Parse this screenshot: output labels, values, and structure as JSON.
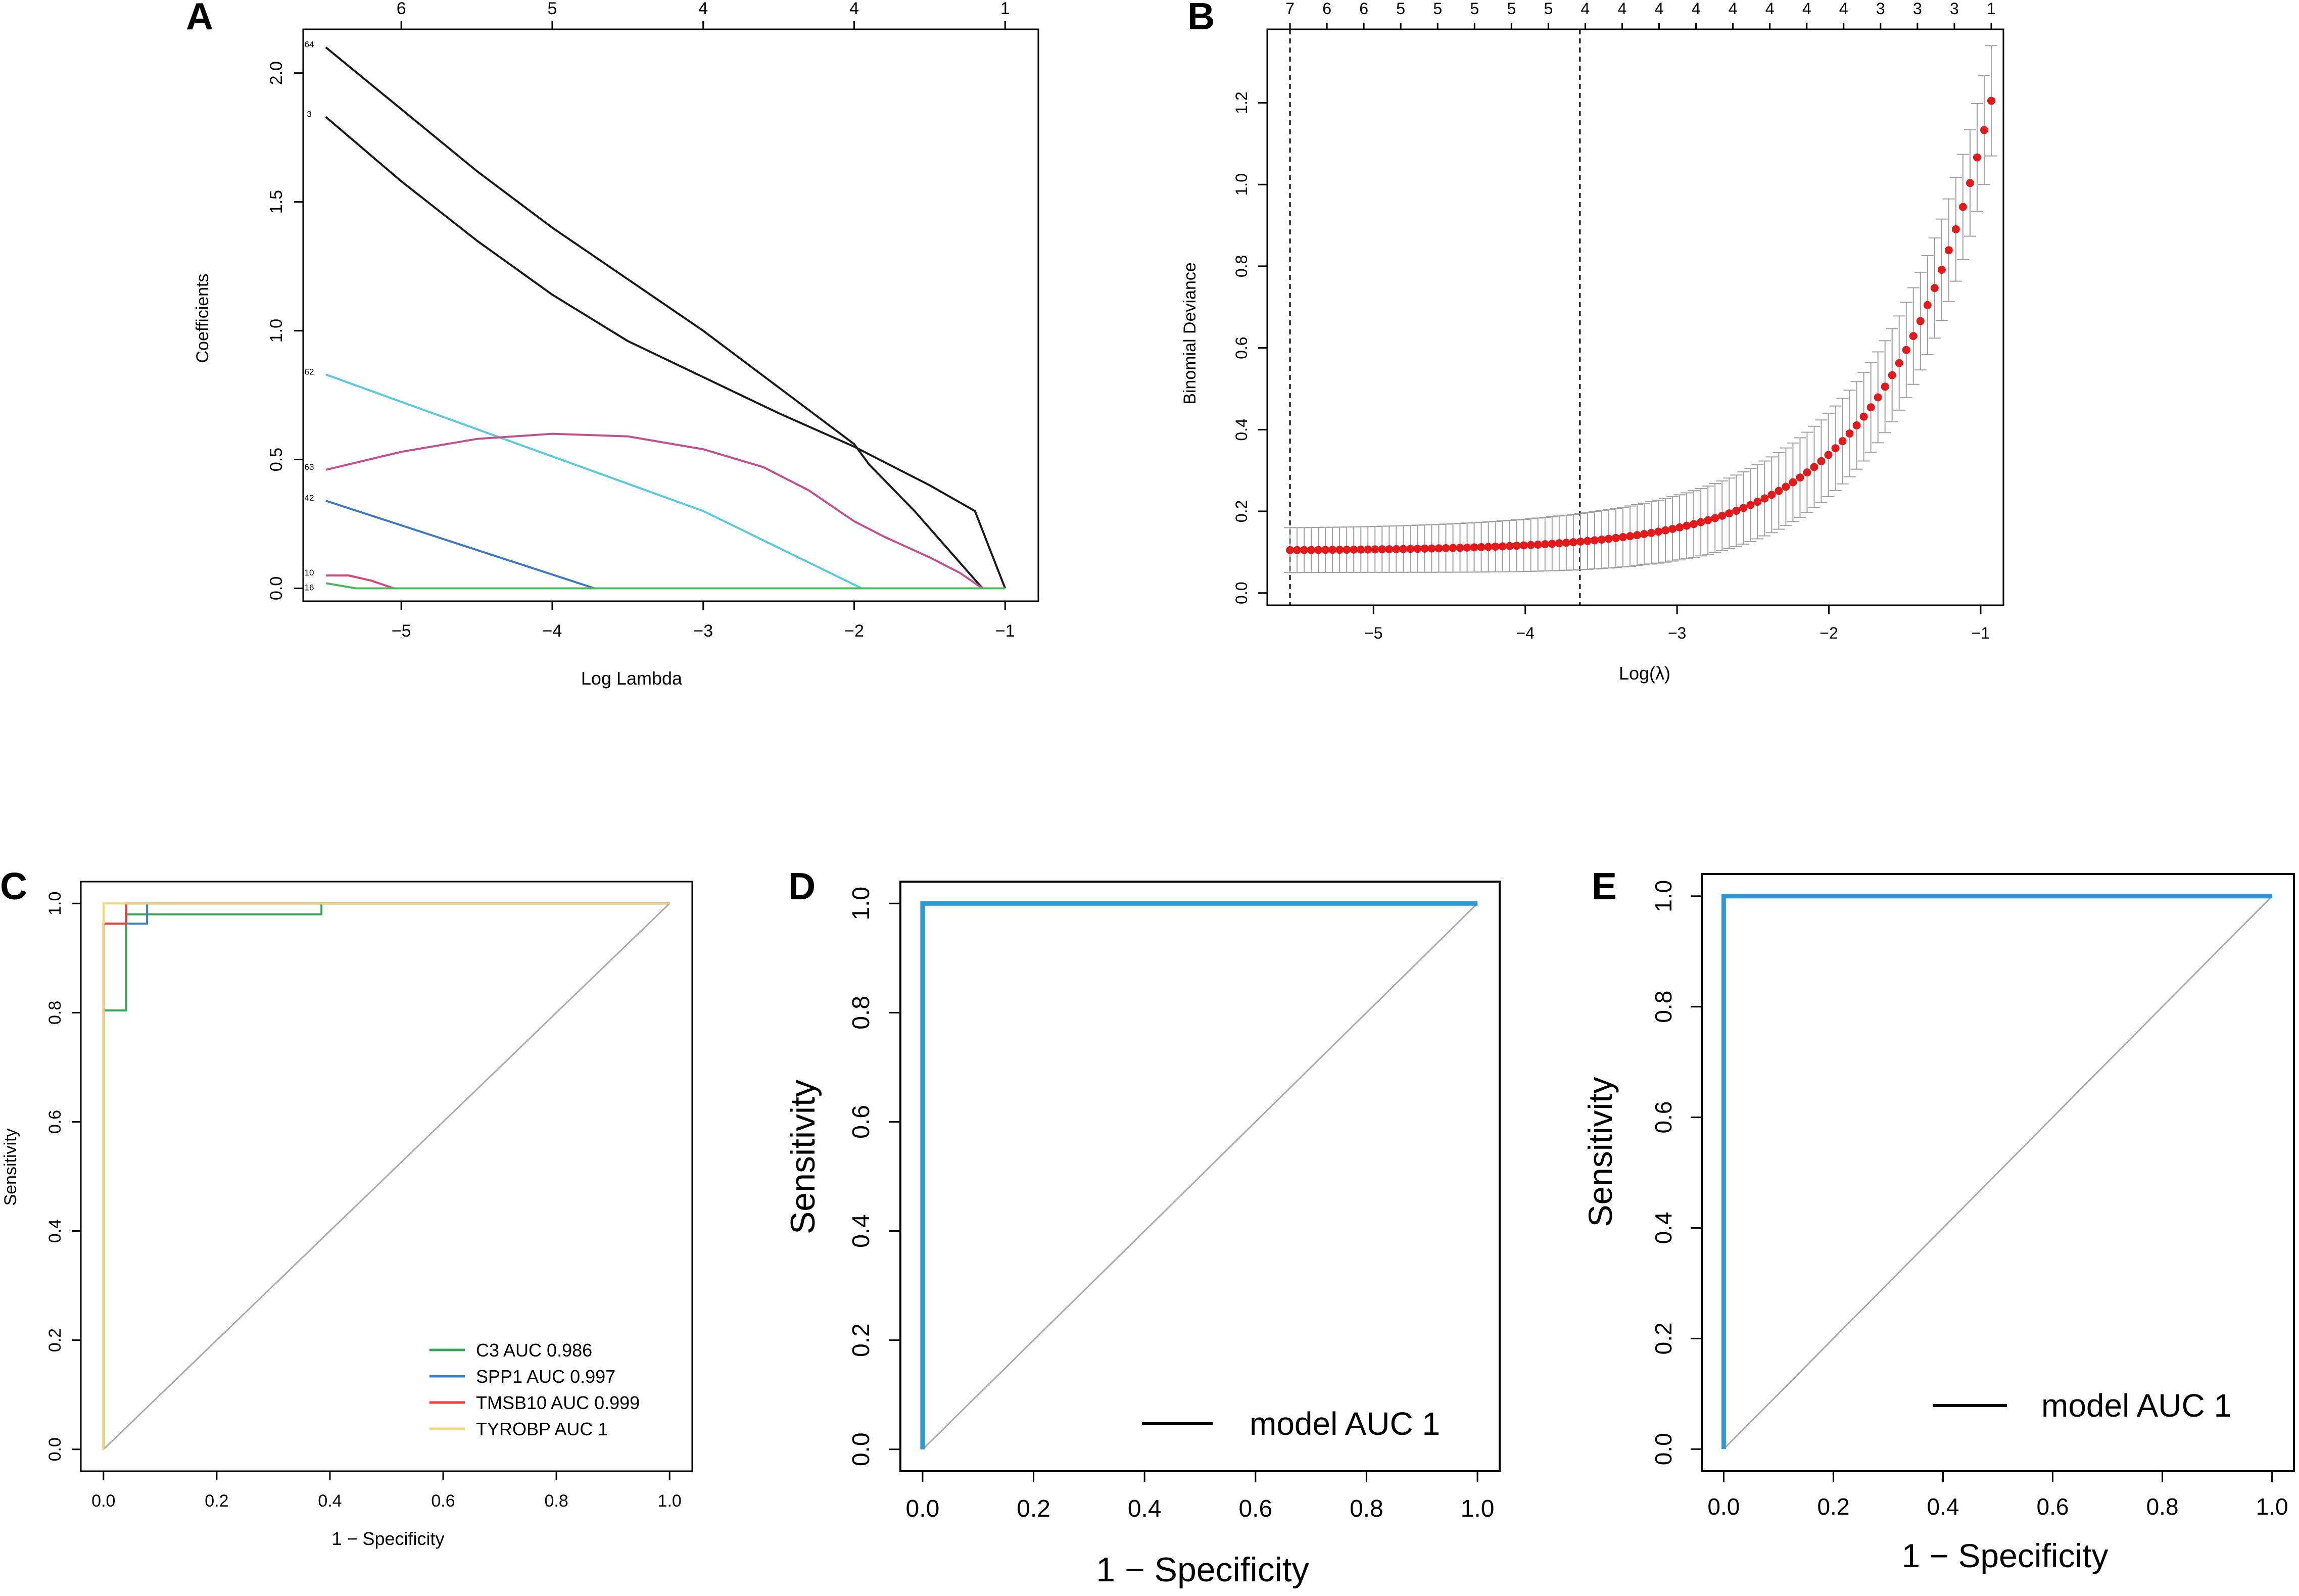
{
  "chart_data": [
    {
      "panel": "A",
      "type": "line",
      "xlabel": "Log Lambda",
      "ylabel": "Coefficients",
      "xlim": [
        -5.65,
        -0.78
      ],
      "ylim": [
        -0.05,
        2.17
      ],
      "x_ticks": [
        -5,
        -4,
        -3,
        -2,
        -1
      ],
      "x_tick_labels": [
        "−5",
        "−4",
        "−3",
        "−2",
        "−1"
      ],
      "y_ticks": [
        0.0,
        0.5,
        1.0,
        1.5,
        2.0
      ],
      "y_tick_labels": [
        "0.0",
        "0.5",
        "1.0",
        "1.5",
        "2.0"
      ],
      "top_axis": {
        "positions": [
          -5.0,
          -4.0,
          -3.0,
          -2.0,
          -1.0
        ],
        "labels": [
          "6",
          "5",
          "4",
          "4",
          "1"
        ]
      },
      "series": [
        {
          "name": "64",
          "color": "#1a1a1a",
          "x": [
            -5.5,
            -5.0,
            -4.5,
            -4.0,
            -3.7,
            -3.5,
            -3.0,
            -2.5,
            -2.0,
            -1.9,
            -1.6,
            -1.3,
            -1.15
          ],
          "y": [
            2.1,
            1.86,
            1.62,
            1.4,
            1.28,
            1.2,
            1.0,
            0.78,
            0.56,
            0.48,
            0.3,
            0.1,
            0.0
          ]
        },
        {
          "name": "3",
          "color": "#1a1a1a",
          "x": [
            -5.5,
            -5.0,
            -4.5,
            -4.0,
            -3.5,
            -3.0,
            -2.5,
            -2.0,
            -1.5,
            -1.2,
            -1.0
          ],
          "y": [
            1.83,
            1.58,
            1.35,
            1.14,
            0.96,
            0.82,
            0.68,
            0.55,
            0.4,
            0.3,
            0.0
          ]
        },
        {
          "name": "62",
          "color": "#5bc8dc",
          "x": [
            -5.5,
            -3.0,
            -1.95,
            -1.0
          ],
          "y": [
            0.83,
            0.3,
            0.0,
            0.0
          ]
        },
        {
          "name": "63",
          "color": "#c0508e",
          "x": [
            -5.5,
            -5.0,
            -4.5,
            -4.0,
            -3.5,
            -3.0,
            -2.6,
            -2.3,
            -2.0,
            -1.8,
            -1.5,
            -1.3,
            -1.15
          ],
          "y": [
            0.46,
            0.53,
            0.58,
            0.6,
            0.59,
            0.54,
            0.47,
            0.38,
            0.26,
            0.2,
            0.12,
            0.06,
            0.0
          ]
        },
        {
          "name": "42",
          "color": "#3b78c0",
          "x": [
            -5.5,
            -3.72,
            -1.0
          ],
          "y": [
            0.34,
            0.0,
            0.0
          ]
        },
        {
          "name": "10",
          "color": "#e0407a",
          "x": [
            -5.5,
            -5.35,
            -5.2,
            -5.05,
            -1.0
          ],
          "y": [
            0.05,
            0.05,
            0.03,
            0.0,
            0.0
          ]
        },
        {
          "name": "16",
          "color": "#4cb85c",
          "x": [
            -5.5,
            -5.3,
            -1.0
          ],
          "y": [
            0.02,
            0.0,
            0.0
          ]
        }
      ]
    },
    {
      "panel": "B",
      "type": "scatter",
      "xlabel": "Log(λ)",
      "ylabel": "Binomial Deviance",
      "xlim": [
        -5.7,
        -0.85
      ],
      "ylim": [
        -0.03,
        1.38
      ],
      "x_ticks": [
        -5,
        -4,
        -3,
        -2,
        -1
      ],
      "x_tick_labels": [
        "−5",
        "−4",
        "−3",
        "−2",
        "−1"
      ],
      "y_ticks": [
        0.0,
        0.2,
        0.4,
        0.6,
        0.8,
        1.0,
        1.2
      ],
      "y_tick_labels": [
        "0.0",
        "0.2",
        "0.4",
        "0.6",
        "0.8",
        "1.0",
        "1.2"
      ],
      "top_axis": {
        "labels": [
          "7",
          "6",
          "6",
          "5",
          "5",
          "5",
          "5",
          "5",
          "4",
          "4",
          "4",
          "4",
          "4",
          "4",
          "4",
          "4",
          "3",
          "3",
          "3",
          "1"
        ]
      },
      "vlines": [
        -5.55,
        -3.64
      ],
      "curve": {
        "x_start": -5.55,
        "x_end": -0.93,
        "n_points": 100,
        "y_start": 0.105,
        "y_end": 1.205,
        "growth": 2.22,
        "err_start": 0.055,
        "err_end": 0.135
      },
      "point_color": "#e31a1c",
      "errorbar_color": "#a0a0a0"
    },
    {
      "panel": "C",
      "type": "line",
      "xlabel": "1 − Specificity",
      "ylabel": "Sensitivity",
      "xlim": [
        -0.04,
        1.04
      ],
      "ylim": [
        -0.04,
        1.04
      ],
      "x_ticks": [
        0.0,
        0.2,
        0.4,
        0.6,
        0.8,
        1.0
      ],
      "x_tick_labels": [
        "0.0",
        "0.2",
        "0.4",
        "0.6",
        "0.8",
        "1.0"
      ],
      "y_ticks": [
        0.0,
        0.2,
        0.4,
        0.6,
        0.8,
        1.0
      ],
      "y_tick_labels": [
        "0.0",
        "0.2",
        "0.4",
        "0.6",
        "0.8",
        "1.0"
      ],
      "diagonal": true,
      "legend_position": "bottom-right",
      "series": [
        {
          "name": "C3 AUC 0.986",
          "color": "#3aa55a",
          "x": [
            0.0,
            0.0,
            0.04,
            0.04,
            0.385,
            0.385,
            1.0
          ],
          "y": [
            0.0,
            0.804,
            0.804,
            0.98,
            0.98,
            1.0,
            1.0
          ]
        },
        {
          "name": "SPP1 AUC 0.997",
          "color": "#3b7fc4",
          "x": [
            0.0,
            0.0,
            0.077,
            0.077,
            1.0
          ],
          "y": [
            0.0,
            0.963,
            0.963,
            1.0,
            1.0
          ]
        },
        {
          "name": "TMSB10 AUC 0.999",
          "color": "#e34040",
          "x": [
            0.0,
            0.0,
            0.04,
            0.04,
            1.0
          ],
          "y": [
            0.0,
            0.963,
            0.963,
            1.0,
            1.0
          ]
        },
        {
          "name": "TYROBP AUC 1",
          "color": "#f2d77a",
          "x": [
            0.0,
            0.0,
            1.0
          ],
          "y": [
            0.0,
            1.0,
            1.0
          ]
        }
      ]
    },
    {
      "panel": "D",
      "type": "line",
      "xlabel": "1 − Specificity",
      "ylabel": "Sensitivity",
      "xlim": [
        -0.04,
        1.04
      ],
      "ylim": [
        -0.04,
        1.04
      ],
      "x_ticks": [
        0.0,
        0.2,
        0.4,
        0.6,
        0.8,
        1.0
      ],
      "x_tick_labels": [
        "0.0",
        "0.2",
        "0.4",
        "0.6",
        "0.8",
        "1.0"
      ],
      "y_ticks": [
        0.0,
        0.2,
        0.4,
        0.6,
        0.8,
        1.0
      ],
      "y_tick_labels": [
        "0.0",
        "0.2",
        "0.4",
        "0.6",
        "0.8",
        "1.0"
      ],
      "diagonal": true,
      "legend_position": "bottom-right",
      "legend_color": "#000000",
      "series": [
        {
          "name": "model AUC 1",
          "color": "#2d9ad6",
          "x": [
            0.0,
            0.0,
            1.0
          ],
          "y": [
            0.0,
            1.0,
            1.0
          ]
        }
      ]
    },
    {
      "panel": "E",
      "type": "line",
      "xlabel": "1 − Specificity",
      "ylabel": "Sensitivity",
      "xlim": [
        -0.04,
        1.04
      ],
      "ylim": [
        -0.04,
        1.04
      ],
      "x_ticks": [
        0.0,
        0.2,
        0.4,
        0.6,
        0.8,
        1.0
      ],
      "x_tick_labels": [
        "0.0",
        "0.2",
        "0.4",
        "0.6",
        "0.8",
        "1.0"
      ],
      "y_ticks": [
        0.0,
        0.2,
        0.4,
        0.6,
        0.8,
        1.0
      ],
      "y_tick_labels": [
        "0.0",
        "0.2",
        "0.4",
        "0.6",
        "0.8",
        "1.0"
      ],
      "diagonal": true,
      "legend_position": "bottom-right",
      "legend_color": "#000000",
      "series": [
        {
          "name": "model AUC 1",
          "color": "#2d9ad6",
          "x": [
            0.0,
            0.0,
            1.0
          ],
          "y": [
            0.0,
            1.0,
            1.0
          ]
        }
      ]
    }
  ]
}
